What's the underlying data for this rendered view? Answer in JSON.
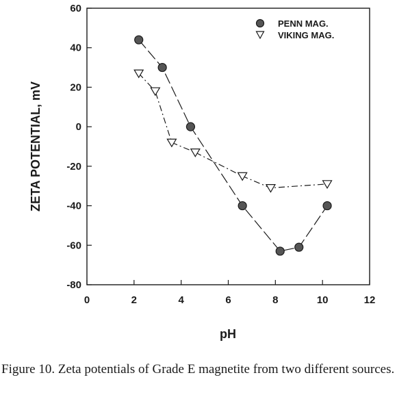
{
  "chart_data": {
    "type": "scatter",
    "xlabel": "pH",
    "ylabel": "ZETA POTENTIAL, mV",
    "xlim": [
      0,
      12
    ],
    "ylim": [
      -80,
      60
    ],
    "xticks": [
      0,
      2,
      4,
      6,
      8,
      10,
      12
    ],
    "yticks": [
      60,
      40,
      20,
      0,
      -20,
      -40,
      -60,
      -80
    ],
    "legend_position": "top-right",
    "series": [
      {
        "name": "PENN MAG.",
        "marker": "filled-circle",
        "line": "long-dash",
        "x": [
          2.2,
          3.2,
          4.4,
          6.6,
          8.2,
          9.0,
          10.2
        ],
        "y": [
          44,
          30,
          0,
          -40,
          -63,
          -61,
          -40
        ]
      },
      {
        "name": "VIKING MAG.",
        "marker": "open-triangle-down",
        "line": "dash-dot",
        "x": [
          2.2,
          2.9,
          3.6,
          4.6,
          6.6,
          7.8,
          10.2
        ],
        "y": [
          27,
          18,
          -8,
          -13,
          -25,
          -31,
          -29
        ]
      }
    ]
  },
  "caption": "Figure 10.  Zeta potentials of Grade E magnetite from two different sources.",
  "colors": {
    "ink": "#1a1a1a",
    "marker_fill": "#555555"
  }
}
